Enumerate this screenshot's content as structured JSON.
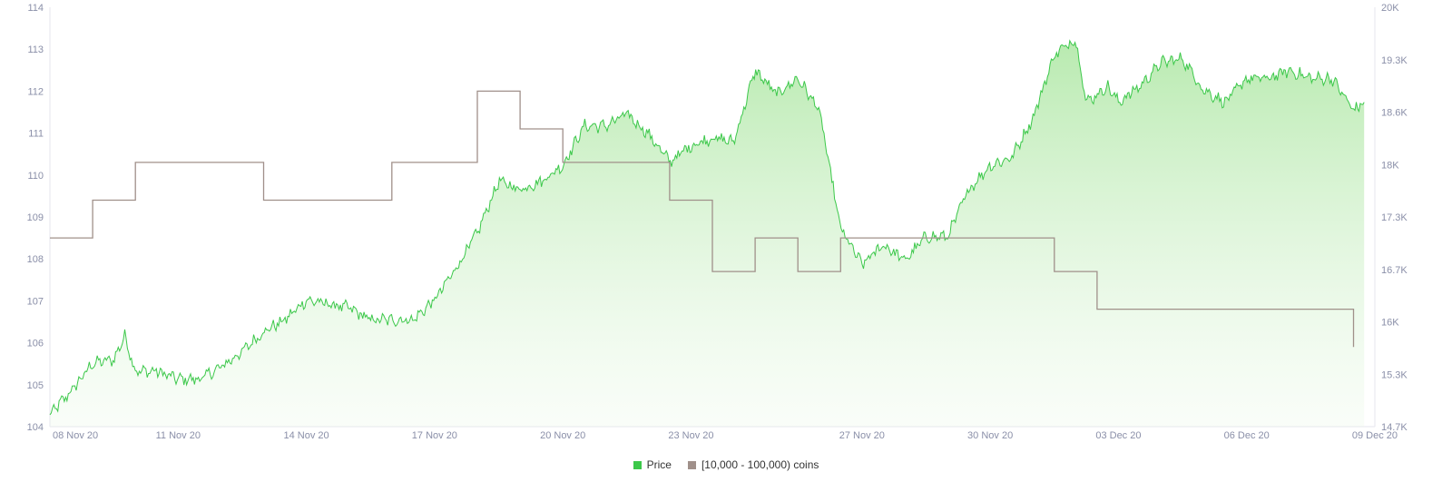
{
  "chart_data": {
    "type": "line",
    "x_ticks": [
      "08 Nov 20",
      "11 Nov 20",
      "14 Nov 20",
      "17 Nov 20",
      "20 Nov 20",
      "23 Nov 20",
      "27 Nov 20",
      "30 Nov 20",
      "03 Dec 20",
      "06 Dec 20",
      "09 Dec 20"
    ],
    "y_left": {
      "ticks": [
        "104",
        "105",
        "106",
        "107",
        "108",
        "109",
        "110",
        "111",
        "112",
        "113",
        "114"
      ],
      "range": [
        104,
        114
      ]
    },
    "y_right": {
      "ticks": [
        "14.7K",
        "15.3K",
        "16K",
        "16.7K",
        "17.3K",
        "18K",
        "18.6K",
        "19.3K",
        "20K"
      ],
      "range": [
        14700,
        20000
      ]
    },
    "grid": "vertical start line only",
    "legend_position": "bottom-center",
    "series": [
      {
        "name": "Price",
        "axis": "right",
        "color": "#3cc84a",
        "fill": "gradient",
        "points": [
          [
            "2020-11-08 00:00",
            14850
          ],
          [
            "2020-11-08 12:00",
            15150
          ],
          [
            "2020-11-09 00:00",
            15500
          ],
          [
            "2020-11-09 12:00",
            15550
          ],
          [
            "2020-11-09 18:00",
            15850
          ],
          [
            "2020-11-10 00:00",
            15400
          ],
          [
            "2020-11-10 12:00",
            15400
          ],
          [
            "2020-11-11 00:00",
            15300
          ],
          [
            "2020-11-11 12:00",
            15300
          ],
          [
            "2020-11-12 00:00",
            15450
          ],
          [
            "2020-11-12 12:00",
            15650
          ],
          [
            "2020-11-13 00:00",
            15900
          ],
          [
            "2020-11-13 12:00",
            16050
          ],
          [
            "2020-11-14 00:00",
            16300
          ],
          [
            "2020-11-14 12:00",
            16250
          ],
          [
            "2020-11-15 00:00",
            16200
          ],
          [
            "2020-11-15 12:00",
            16050
          ],
          [
            "2020-11-16 00:00",
            16050
          ],
          [
            "2020-11-16 12:00",
            16050
          ],
          [
            "2020-11-17 00:00",
            16300
          ],
          [
            "2020-11-17 12:00",
            16700
          ],
          [
            "2020-11-18 00:00",
            17150
          ],
          [
            "2020-11-18 12:00",
            17800
          ],
          [
            "2020-11-19 00:00",
            17700
          ],
          [
            "2020-11-19 12:00",
            17800
          ],
          [
            "2020-11-20 00:00",
            18000
          ],
          [
            "2020-11-20 12:00",
            18500
          ],
          [
            "2020-11-21 00:00",
            18500
          ],
          [
            "2020-11-21 12:00",
            18650
          ],
          [
            "2020-11-22 00:00",
            18400
          ],
          [
            "2020-11-22 12:00",
            18050
          ],
          [
            "2020-11-23 00:00",
            18250
          ],
          [
            "2020-11-23 12:00",
            18350
          ],
          [
            "2020-11-24 00:00",
            18300
          ],
          [
            "2020-11-24 12:00",
            19200
          ],
          [
            "2020-11-25 00:00",
            18900
          ],
          [
            "2020-11-25 12:00",
            19100
          ],
          [
            "2020-11-26 00:00",
            18700
          ],
          [
            "2020-11-26 12:00",
            17200
          ],
          [
            "2020-11-27 00:00",
            16750
          ],
          [
            "2020-11-27 12:00",
            17000
          ],
          [
            "2020-11-28 00:00",
            16800
          ],
          [
            "2020-11-28 12:00",
            17100
          ],
          [
            "2020-11-29 00:00",
            17100
          ],
          [
            "2020-11-29 12:00",
            17700
          ],
          [
            "2020-11-30 00:00",
            18000
          ],
          [
            "2020-11-30 12:00",
            18100
          ],
          [
            "2020-12-01 00:00",
            18600
          ],
          [
            "2020-12-01 12:00",
            19400
          ],
          [
            "2020-12-02 00:00",
            19600
          ],
          [
            "2020-12-02 06:00",
            18800
          ],
          [
            "2020-12-02 18:00",
            19000
          ],
          [
            "2020-12-03 00:00",
            18800
          ],
          [
            "2020-12-03 12:00",
            19000
          ],
          [
            "2020-12-04 00:00",
            19300
          ],
          [
            "2020-12-04 12:00",
            19350
          ],
          [
            "2020-12-05 00:00",
            18950
          ],
          [
            "2020-12-05 12:00",
            18800
          ],
          [
            "2020-12-06 00:00",
            19100
          ],
          [
            "2020-12-06 12:00",
            19100
          ],
          [
            "2020-12-07 00:00",
            19200
          ],
          [
            "2020-12-07 12:00",
            19100
          ],
          [
            "2020-12-08 00:00",
            19100
          ],
          [
            "2020-12-08 12:00",
            18700
          ],
          [
            "2020-12-08 18:00",
            18800
          ]
        ]
      },
      {
        "name": "[10,000 - 100,000) coins",
        "axis": "left",
        "color": "#a0908a",
        "step": true,
        "points": [
          [
            "2020-11-08 00:00",
            108.5
          ],
          [
            "2020-11-09 00:00",
            109.4
          ],
          [
            "2020-11-10 00:00",
            110.3
          ],
          [
            "2020-11-13 00:00",
            109.4
          ],
          [
            "2020-11-16 00:00",
            110.3
          ],
          [
            "2020-11-18 00:00",
            112.0
          ],
          [
            "2020-11-19 00:00",
            111.1
          ],
          [
            "2020-11-20 00:00",
            110.3
          ],
          [
            "2020-11-22 12:00",
            109.4
          ],
          [
            "2020-11-23 12:00",
            107.7
          ],
          [
            "2020-11-24 12:00",
            108.5
          ],
          [
            "2020-11-25 12:00",
            107.7
          ],
          [
            "2020-11-26 12:00",
            108.5
          ],
          [
            "2020-12-01 12:00",
            107.7
          ],
          [
            "2020-12-02 12:00",
            106.8
          ],
          [
            "2020-12-08 12:00",
            106.8
          ],
          [
            "2020-12-08 12:00",
            105.9
          ]
        ]
      }
    ]
  }
}
